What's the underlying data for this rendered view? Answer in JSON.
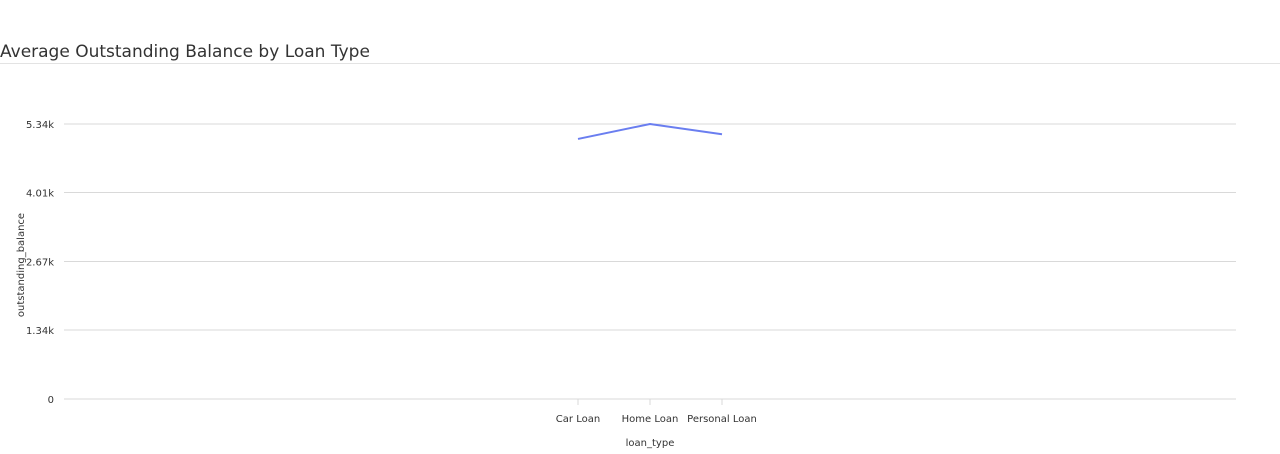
{
  "panel": {
    "title": "Average Outstanding Balance by Loan Type"
  },
  "chart_data": {
    "type": "line",
    "title": "Average Outstanding Balance by Loan Type",
    "xlabel": "loan_type",
    "ylabel": "outstanding_balance",
    "categories": [
      "Car Loan",
      "Home Loan",
      "Personal Loan"
    ],
    "series": [
      {
        "values": [
          5050,
          5340,
          5140
        ]
      }
    ],
    "y_ticks": [
      0,
      1340,
      2670,
      4010,
      5340
    ],
    "y_tick_labels": [
      "0",
      "1.34k",
      "2.67k",
      "4.01k",
      "5.34k"
    ],
    "ylim": [
      0,
      5340
    ],
    "grid": true,
    "line_color": "#6a7ef0",
    "grid_color": "#d9d9d9"
  }
}
